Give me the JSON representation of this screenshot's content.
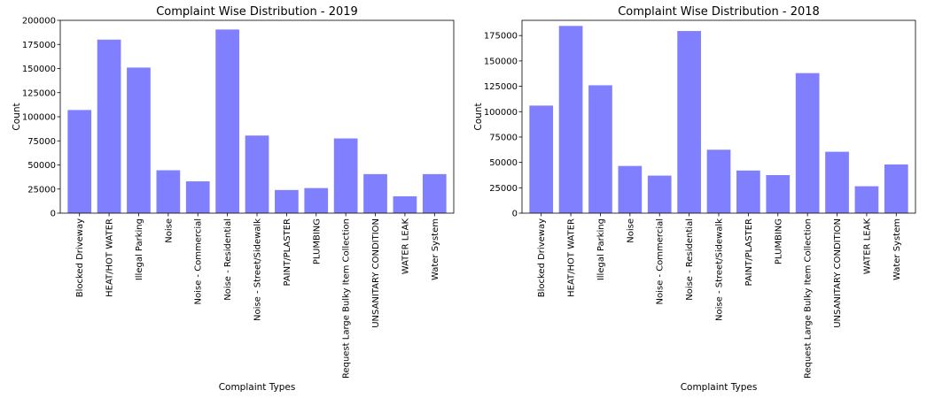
{
  "chart_data": [
    {
      "type": "bar",
      "title": "Complaint Wise Distribution - 2019",
      "xlabel": "Complaint Types",
      "ylabel": "Count",
      "ylim": [
        0,
        200000
      ],
      "yticks": [
        0,
        25000,
        50000,
        75000,
        100000,
        125000,
        150000,
        175000,
        200000
      ],
      "categories": [
        "Blocked Driveway",
        "HEAT/HOT WATER",
        "Illegal Parking",
        "Noise",
        "Noise - Commercial",
        "Noise - Residential",
        "Noise - Street/Sidewalk",
        "PAINT/PLASTER",
        "PLUMBING",
        "Request Large Bulky Item Collection",
        "UNSANITARY CONDITION",
        "WATER LEAK",
        "Water System"
      ],
      "values": [
        107000,
        180000,
        151000,
        44500,
        33000,
        190500,
        80500,
        24000,
        26000,
        77500,
        40500,
        17500,
        40500
      ],
      "bar_color": "#8080ff",
      "grid": false
    },
    {
      "type": "bar",
      "title": "Complaint Wise Distribution - 2018",
      "xlabel": "Complaint Types",
      "ylabel": "Count",
      "ylim": [
        0,
        190000
      ],
      "yticks": [
        0,
        25000,
        50000,
        75000,
        100000,
        125000,
        150000,
        175000
      ],
      "categories": [
        "Blocked Driveway",
        "HEAT/HOT WATER",
        "Illegal Parking",
        "Noise",
        "Noise - Commercial",
        "Noise - Residential",
        "Noise - Street/Sidewalk",
        "PAINT/PLASTER",
        "PLUMBING",
        "Request Large Bulky Item Collection",
        "UNSANITARY CONDITION",
        "WATER LEAK",
        "Water System"
      ],
      "values": [
        106000,
        184500,
        126000,
        46500,
        37000,
        179500,
        62500,
        42000,
        37500,
        138000,
        60500,
        26500,
        48000
      ],
      "bar_color": "#8080ff",
      "grid": false
    }
  ]
}
